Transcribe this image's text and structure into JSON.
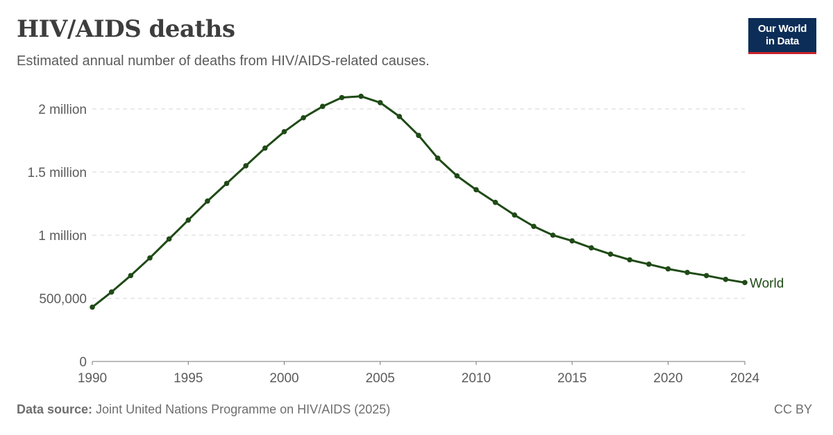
{
  "header": {
    "title": "HIV/AIDS deaths",
    "subtitle": "Estimated annual number of deaths from HIV/AIDS-related causes."
  },
  "logo": {
    "line1": "Our World",
    "line2": "in Data"
  },
  "footer": {
    "source_label": "Data source:",
    "source_text": " Joint United Nations Programme on HIV/AIDS (2025)",
    "license": "CC BY"
  },
  "colors": {
    "series": "#1f4a16",
    "grid": "#dddddd",
    "axis": "#777777",
    "logo_bg": "#0c2d57",
    "logo_accent": "#c8242b"
  },
  "chart_data": {
    "type": "line",
    "title": "HIV/AIDS deaths",
    "subtitle": "Estimated annual number of deaths from HIV/AIDS-related causes.",
    "xlabel": "",
    "ylabel": "",
    "xlim": [
      1990,
      2024
    ],
    "ylim": [
      0,
      2000000
    ],
    "x_ticks": [
      1990,
      1995,
      2000,
      2005,
      2010,
      2015,
      2020,
      2024
    ],
    "x_tick_labels": [
      "1990",
      "1995",
      "2000",
      "2005",
      "2010",
      "2015",
      "2020",
      "2024"
    ],
    "y_ticks": [
      0,
      500000,
      1000000,
      1500000,
      2000000
    ],
    "y_tick_labels": [
      "0",
      "500,000",
      "1 million",
      "1.5 million",
      "2 million"
    ],
    "grid": true,
    "x": [
      1990,
      1991,
      1992,
      1993,
      1994,
      1995,
      1996,
      1997,
      1998,
      1999,
      2000,
      2001,
      2002,
      2003,
      2004,
      2005,
      2006,
      2007,
      2008,
      2009,
      2010,
      2011,
      2012,
      2013,
      2014,
      2015,
      2016,
      2017,
      2018,
      2019,
      2020,
      2021,
      2022,
      2023,
      2024
    ],
    "series": [
      {
        "name": "World",
        "values": [
          430000,
          550000,
          680000,
          820000,
          970000,
          1120000,
          1270000,
          1410000,
          1550000,
          1690000,
          1820000,
          1930000,
          2020000,
          2090000,
          2100000,
          2050000,
          1940000,
          1790000,
          1610000,
          1470000,
          1360000,
          1260000,
          1160000,
          1070000,
          1000000,
          955000,
          900000,
          850000,
          805000,
          770000,
          733000,
          705000,
          680000,
          650000,
          625000
        ]
      }
    ]
  }
}
